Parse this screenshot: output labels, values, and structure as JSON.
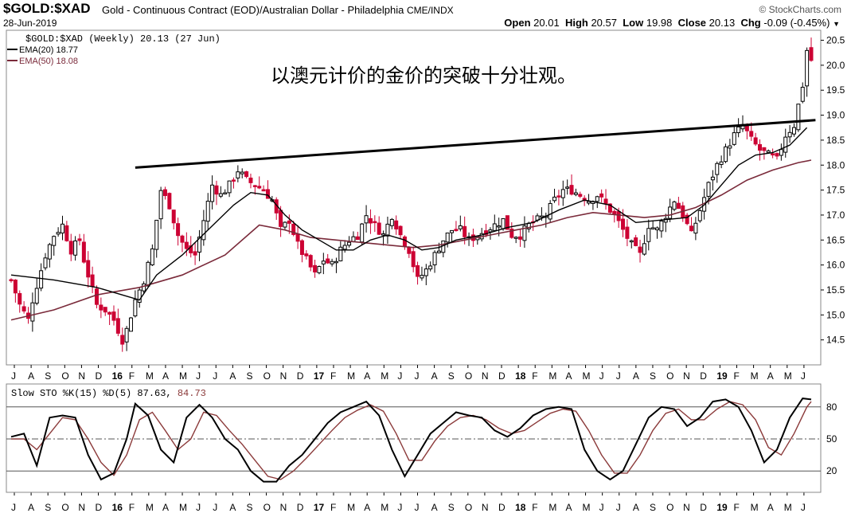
{
  "header": {
    "symbol": "$GOLD:$XAD",
    "description": "Gold - Continuous Contract (EOD)/Australian Dollar - Philadelphia",
    "exchange": "CME/INDX",
    "brand": "© StockCharts.com",
    "date": "28-Jun-2019",
    "open_label": "Open",
    "open": "20.01",
    "high_label": "High",
    "high": "20.57",
    "low_label": "Low",
    "low": "19.98",
    "close_label": "Close",
    "close": "20.13",
    "chg_label": "Chg",
    "chg": "-0.09 (-0.45%)"
  },
  "legend": {
    "price": "$GOLD:$XAD (Weekly) 20.13 (27 Jun)",
    "ema20": "EMA(20) 18.77",
    "ema50": "EMA(50) 18.08",
    "sto_prefix": "Slow STO %K(15) %D(5) 87.63,",
    "sto_d": " 84.73"
  },
  "annotation": "以澳元计价的金价的突破十分壮观。",
  "colors": {
    "up": "#000000",
    "down": "#cc0033",
    "ema20": "#000000",
    "ema50": "#7a2a3a",
    "trendline": "#000000",
    "stoK": "#000000",
    "stoD": "#8b3a3a"
  },
  "chart_data": [
    {
      "type": "candlestick",
      "title": "$GOLD:$XAD (Weekly)",
      "y_ticks": [
        14.5,
        15.0,
        15.5,
        16.0,
        16.5,
        17.0,
        17.5,
        18.0,
        18.5,
        19.0,
        19.5,
        20.0,
        20.5
      ],
      "ylim": [
        14.0,
        20.7
      ],
      "x_ticks": [
        "J",
        "A",
        "S",
        "O",
        "N",
        "D",
        "16",
        "F",
        "M",
        "A",
        "M",
        "J",
        "J",
        "A",
        "S",
        "O",
        "N",
        "D",
        "17",
        "F",
        "M",
        "A",
        "M",
        "J",
        "J",
        "A",
        "S",
        "O",
        "N",
        "D",
        "18",
        "F",
        "M",
        "A",
        "M",
        "J",
        "J",
        "A",
        "S",
        "O",
        "N",
        "D",
        "19",
        "F",
        "M",
        "A",
        "M",
        "J"
      ],
      "close_path": [
        [
          0,
          15.7
        ],
        [
          2,
          15.2
        ],
        [
          4,
          14.9
        ],
        [
          5,
          15.3
        ],
        [
          8,
          16.2
        ],
        [
          10,
          16.6
        ],
        [
          12,
          16.8
        ],
        [
          14,
          16.3
        ],
        [
          16,
          16.5
        ],
        [
          17,
          16.1
        ],
        [
          20,
          15.2
        ],
        [
          22,
          15.1
        ],
        [
          24,
          14.9
        ],
        [
          26,
          14.5
        ],
        [
          27,
          14.7
        ],
        [
          29,
          15.3
        ],
        [
          31,
          15.7
        ],
        [
          33,
          16.3
        ],
        [
          35,
          17.5
        ],
        [
          37,
          17.2
        ],
        [
          39,
          16.6
        ],
        [
          41,
          16.3
        ],
        [
          43,
          16.2
        ],
        [
          45,
          16.9
        ],
        [
          47,
          17.6
        ],
        [
          49,
          17.4
        ],
        [
          51,
          17.6
        ],
        [
          53,
          17.9
        ],
        [
          55,
          17.7
        ],
        [
          57,
          17.6
        ],
        [
          59,
          17.5
        ],
        [
          61,
          17.3
        ],
        [
          63,
          16.7
        ],
        [
          65,
          16.9
        ],
        [
          67,
          16.4
        ],
        [
          69,
          16.1
        ],
        [
          71,
          15.8
        ],
        [
          73,
          16.1
        ],
        [
          75,
          16.0
        ],
        [
          77,
          16.3
        ],
        [
          79,
          16.5
        ],
        [
          81,
          16.6
        ],
        [
          83,
          17.0
        ],
        [
          85,
          16.8
        ],
        [
          87,
          16.6
        ],
        [
          89,
          17.0
        ],
        [
          91,
          16.6
        ],
        [
          93,
          16.3
        ],
        [
          95,
          15.7
        ],
        [
          97,
          15.9
        ],
        [
          99,
          16.2
        ],
        [
          101,
          16.5
        ],
        [
          103,
          16.7
        ],
        [
          105,
          16.7
        ],
        [
          107,
          16.5
        ],
        [
          109,
          16.6
        ],
        [
          111,
          16.7
        ],
        [
          113,
          16.8
        ],
        [
          115,
          16.9
        ],
        [
          117,
          16.6
        ],
        [
          119,
          16.6
        ],
        [
          121,
          16.8
        ],
        [
          123,
          16.9
        ],
        [
          125,
          17.0
        ],
        [
          127,
          17.3
        ],
        [
          129,
          17.5
        ],
        [
          131,
          17.5
        ],
        [
          133,
          17.4
        ],
        [
          135,
          17.3
        ],
        [
          137,
          17.4
        ],
        [
          139,
          17.2
        ],
        [
          141,
          17.0
        ],
        [
          143,
          16.7
        ],
        [
          145,
          16.4
        ],
        [
          147,
          16.2
        ],
        [
          149,
          16.8
        ],
        [
          151,
          16.7
        ],
        [
          153,
          17.0
        ],
        [
          155,
          17.3
        ],
        [
          157,
          17.0
        ],
        [
          159,
          16.6
        ],
        [
          161,
          17.1
        ],
        [
          163,
          17.6
        ],
        [
          165,
          18.0
        ],
        [
          167,
          18.3
        ],
        [
          169,
          18.6
        ],
        [
          171,
          18.8
        ],
        [
          173,
          18.5
        ],
        [
          175,
          18.3
        ],
        [
          177,
          18.2
        ],
        [
          179,
          18.1
        ],
        [
          181,
          18.6
        ],
        [
          183,
          18.8
        ],
        [
          185,
          19.6
        ],
        [
          186,
          20.3
        ],
        [
          187,
          20.1
        ]
      ],
      "candle_count": 188,
      "ema20_path": [
        [
          0,
          15.8
        ],
        [
          10,
          15.7
        ],
        [
          20,
          15.55
        ],
        [
          30,
          15.3
        ],
        [
          34,
          15.8
        ],
        [
          40,
          16.2
        ],
        [
          46,
          16.7
        ],
        [
          52,
          17.2
        ],
        [
          56,
          17.45
        ],
        [
          60,
          17.4
        ],
        [
          64,
          17.0
        ],
        [
          68,
          16.7
        ],
        [
          72,
          16.5
        ],
        [
          76,
          16.3
        ],
        [
          80,
          16.3
        ],
        [
          84,
          16.5
        ],
        [
          88,
          16.6
        ],
        [
          92,
          16.5
        ],
        [
          96,
          16.3
        ],
        [
          100,
          16.35
        ],
        [
          104,
          16.5
        ],
        [
          110,
          16.6
        ],
        [
          116,
          16.75
        ],
        [
          122,
          16.85
        ],
        [
          128,
          17.1
        ],
        [
          134,
          17.3
        ],
        [
          140,
          17.2
        ],
        [
          146,
          16.85
        ],
        [
          152,
          16.9
        ],
        [
          158,
          16.95
        ],
        [
          162,
          17.2
        ],
        [
          166,
          17.6
        ],
        [
          170,
          18.0
        ],
        [
          174,
          18.2
        ],
        [
          178,
          18.25
        ],
        [
          182,
          18.4
        ],
        [
          186,
          18.75
        ]
      ],
      "ema50_path": [
        [
          0,
          14.9
        ],
        [
          10,
          15.1
        ],
        [
          20,
          15.4
        ],
        [
          30,
          15.55
        ],
        [
          40,
          15.8
        ],
        [
          50,
          16.2
        ],
        [
          58,
          16.8
        ],
        [
          64,
          16.7
        ],
        [
          70,
          16.55
        ],
        [
          76,
          16.5
        ],
        [
          82,
          16.45
        ],
        [
          88,
          16.4
        ],
        [
          94,
          16.35
        ],
        [
          100,
          16.4
        ],
        [
          106,
          16.5
        ],
        [
          112,
          16.6
        ],
        [
          118,
          16.7
        ],
        [
          124,
          16.8
        ],
        [
          130,
          16.95
        ],
        [
          136,
          17.05
        ],
        [
          142,
          17.0
        ],
        [
          148,
          16.95
        ],
        [
          154,
          17.0
        ],
        [
          160,
          17.15
        ],
        [
          166,
          17.4
        ],
        [
          172,
          17.7
        ],
        [
          178,
          17.9
        ],
        [
          184,
          18.05
        ],
        [
          187,
          18.1
        ]
      ],
      "trendline": [
        [
          29,
          17.95
        ],
        [
          188,
          18.9
        ]
      ],
      "ema20_last": 18.77,
      "ema50_last": 18.08,
      "last_close": 20.13
    },
    {
      "type": "line",
      "title": "Slow STO %K(15) %D(5)",
      "y_ticks": [
        20,
        50,
        80
      ],
      "ylim": [
        0,
        100
      ],
      "reference_lines": [
        20,
        50,
        80
      ],
      "series": [
        {
          "name": "%K",
          "last": 87.63,
          "points": [
            [
              0,
              52
            ],
            [
              3,
              55
            ],
            [
              6,
              25
            ],
            [
              9,
              70
            ],
            [
              12,
              72
            ],
            [
              15,
              70
            ],
            [
              18,
              35
            ],
            [
              21,
              12
            ],
            [
              24,
              18
            ],
            [
              27,
              50
            ],
            [
              29,
              83
            ],
            [
              32,
              72
            ],
            [
              35,
              40
            ],
            [
              38,
              28
            ],
            [
              41,
              70
            ],
            [
              44,
              82
            ],
            [
              47,
              70
            ],
            [
              50,
              50
            ],
            [
              53,
              40
            ],
            [
              56,
              20
            ],
            [
              59,
              10
            ],
            [
              62,
              10
            ],
            [
              65,
              25
            ],
            [
              68,
              35
            ],
            [
              71,
              50
            ],
            [
              74,
              65
            ],
            [
              77,
              75
            ],
            [
              80,
              80
            ],
            [
              83,
              85
            ],
            [
              86,
              72
            ],
            [
              89,
              40
            ],
            [
              92,
              15
            ],
            [
              95,
              35
            ],
            [
              98,
              55
            ],
            [
              101,
              65
            ],
            [
              104,
              75
            ],
            [
              107,
              72
            ],
            [
              110,
              70
            ],
            [
              113,
              58
            ],
            [
              116,
              52
            ],
            [
              119,
              60
            ],
            [
              122,
              72
            ],
            [
              125,
              78
            ],
            [
              128,
              80
            ],
            [
              131,
              78
            ],
            [
              134,
              40
            ],
            [
              137,
              20
            ],
            [
              140,
              12
            ],
            [
              143,
              20
            ],
            [
              146,
              45
            ],
            [
              149,
              70
            ],
            [
              152,
              80
            ],
            [
              155,
              78
            ],
            [
              158,
              62
            ],
            [
              161,
              70
            ],
            [
              164,
              85
            ],
            [
              167,
              87
            ],
            [
              170,
              80
            ],
            [
              173,
              58
            ],
            [
              176,
              28
            ],
            [
              179,
              40
            ],
            [
              182,
              70
            ],
            [
              185,
              88
            ],
            [
              187,
              87
            ]
          ]
        },
        {
          "name": "%D",
          "last": 84.73,
          "points": [
            [
              0,
              50
            ],
            [
              3,
              50
            ],
            [
              6,
              40
            ],
            [
              9,
              55
            ],
            [
              12,
              70
            ],
            [
              15,
              68
            ],
            [
              18,
              50
            ],
            [
              21,
              28
            ],
            [
              24,
              16
            ],
            [
              27,
              35
            ],
            [
              30,
              68
            ],
            [
              33,
              75
            ],
            [
              36,
              58
            ],
            [
              39,
              40
            ],
            [
              42,
              50
            ],
            [
              45,
              75
            ],
            [
              48,
              72
            ],
            [
              51,
              58
            ],
            [
              54,
              45
            ],
            [
              57,
              30
            ],
            [
              60,
              15
            ],
            [
              63,
              12
            ],
            [
              66,
              20
            ],
            [
              69,
              32
            ],
            [
              72,
              45
            ],
            [
              75,
              58
            ],
            [
              78,
              70
            ],
            [
              81,
              77
            ],
            [
              84,
              82
            ],
            [
              87,
              76
            ],
            [
              90,
              55
            ],
            [
              93,
              30
            ],
            [
              96,
              30
            ],
            [
              99,
              48
            ],
            [
              102,
              62
            ],
            [
              105,
              70
            ],
            [
              108,
              72
            ],
            [
              111,
              68
            ],
            [
              114,
              60
            ],
            [
              117,
              55
            ],
            [
              120,
              58
            ],
            [
              123,
              66
            ],
            [
              126,
              74
            ],
            [
              129,
              78
            ],
            [
              132,
              76
            ],
            [
              135,
              58
            ],
            [
              138,
              35
            ],
            [
              141,
              18
            ],
            [
              144,
              18
            ],
            [
              147,
              35
            ],
            [
              150,
              58
            ],
            [
              153,
              74
            ],
            [
              156,
              78
            ],
            [
              159,
              68
            ],
            [
              162,
              68
            ],
            [
              165,
              78
            ],
            [
              168,
              85
            ],
            [
              171,
              82
            ],
            [
              174,
              68
            ],
            [
              177,
              42
            ],
            [
              180,
              35
            ],
            [
              183,
              55
            ],
            [
              186,
              80
            ],
            [
              187,
              85
            ]
          ]
        }
      ]
    }
  ]
}
